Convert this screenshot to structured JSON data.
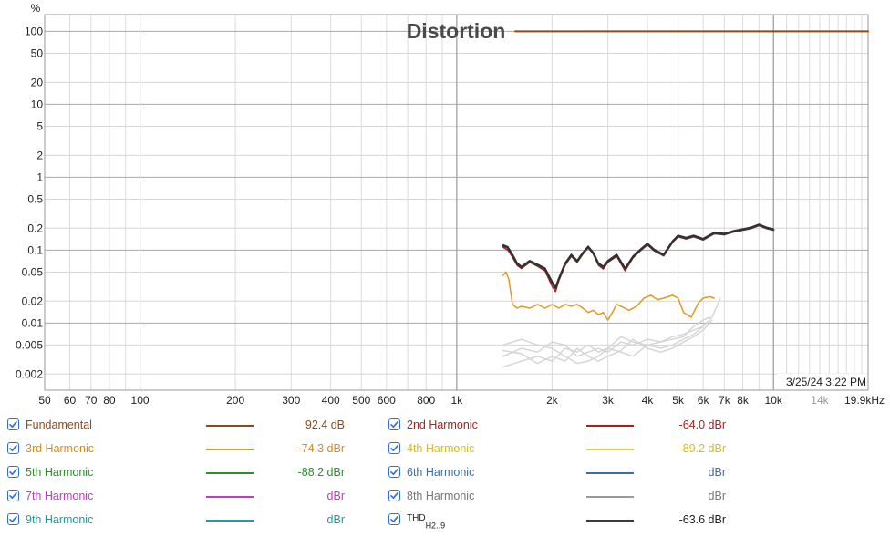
{
  "chart_data": {
    "type": "line",
    "title": "Distortion",
    "ylabel": "%",
    "xlabel": "",
    "x_scale": "log",
    "y_scale": "log",
    "xlim": [
      50,
      19900
    ],
    "ylim": [
      0.0012,
      170
    ],
    "grid": true,
    "timestamp": "3/25/24 3:22 PM",
    "x_ticks": [
      {
        "v": 50,
        "label": "50"
      },
      {
        "v": 60,
        "label": "60"
      },
      {
        "v": 70,
        "label": "70"
      },
      {
        "v": 80,
        "label": "80"
      },
      {
        "v": 100,
        "label": "100"
      },
      {
        "v": 200,
        "label": "200"
      },
      {
        "v": 300,
        "label": "300"
      },
      {
        "v": 400,
        "label": "400"
      },
      {
        "v": 500,
        "label": "500"
      },
      {
        "v": 600,
        "label": "600"
      },
      {
        "v": 800,
        "label": "800"
      },
      {
        "v": 1000,
        "label": "1k"
      },
      {
        "v": 2000,
        "label": "2k"
      },
      {
        "v": 3000,
        "label": "3k"
      },
      {
        "v": 4000,
        "label": "4k"
      },
      {
        "v": 5000,
        "label": "5k"
      },
      {
        "v": 6000,
        "label": "6k"
      },
      {
        "v": 7000,
        "label": "7k"
      },
      {
        "v": 8000,
        "label": "8k"
      },
      {
        "v": 10000,
        "label": "10k"
      },
      {
        "v": 14000,
        "label": "14k",
        "muted": true
      },
      {
        "v": 19900,
        "label": "19.9kHz"
      }
    ],
    "y_ticks": [
      {
        "v": 100,
        "label": "100"
      },
      {
        "v": 50,
        "label": "50"
      },
      {
        "v": 20,
        "label": "20"
      },
      {
        "v": 10,
        "label": "10"
      },
      {
        "v": 5,
        "label": "5"
      },
      {
        "v": 2,
        "label": "2"
      },
      {
        "v": 1,
        "label": "1"
      },
      {
        "v": 0.5,
        "label": "0.5"
      },
      {
        "v": 0.2,
        "label": "0.2"
      },
      {
        "v": 0.1,
        "label": "0.1"
      },
      {
        "v": 0.05,
        "label": "0.05"
      },
      {
        "v": 0.02,
        "label": "0.02"
      },
      {
        "v": 0.01,
        "label": "0.01"
      },
      {
        "v": 0.005,
        "label": "0.005"
      },
      {
        "v": 0.002,
        "label": "0.002"
      }
    ],
    "series": [
      {
        "key": "fundamental",
        "color": "#8b4a1c",
        "width": 2,
        "x": [
          1530,
          19900
        ],
        "y": [
          100,
          100
        ]
      },
      {
        "key": "thd",
        "color": "#3a3a3a",
        "width": 2.4,
        "x": [
          1400,
          1450,
          1500,
          1550,
          1600,
          1700,
          1800,
          1900,
          2000,
          2050,
          2100,
          2200,
          2300,
          2400,
          2500,
          2600,
          2700,
          2800,
          2900,
          3000,
          3200,
          3400,
          3600,
          3800,
          4000,
          4200,
          4500,
          4800,
          5000,
          5300,
          5600,
          6000,
          6500,
          7000,
          7500,
          8000,
          8500,
          9000,
          9500,
          10000
        ],
        "y": [
          0.115,
          0.108,
          0.085,
          0.065,
          0.058,
          0.07,
          0.062,
          0.055,
          0.036,
          0.03,
          0.04,
          0.065,
          0.085,
          0.07,
          0.09,
          0.11,
          0.09,
          0.065,
          0.058,
          0.07,
          0.085,
          0.055,
          0.08,
          0.1,
          0.12,
          0.1,
          0.085,
          0.13,
          0.155,
          0.145,
          0.155,
          0.14,
          0.17,
          0.165,
          0.18,
          0.19,
          0.2,
          0.22,
          0.2,
          0.19
        ]
      },
      {
        "key": "h2",
        "color": "#b01c1c",
        "width": 1.4,
        "x": [
          1400,
          1450,
          1500,
          1550,
          1600,
          1700,
          1800,
          1900,
          2000,
          2050,
          2100,
          2200,
          2300,
          2400,
          2500,
          2600,
          2700,
          2800,
          2900,
          3000,
          3200,
          3400,
          3600,
          3800,
          4000,
          4200,
          4500,
          4800,
          5000,
          5300,
          5600,
          6000,
          6500,
          7000,
          7500,
          8000,
          8500,
          9000,
          9500,
          10000
        ],
        "y": [
          0.11,
          0.1,
          0.08,
          0.062,
          0.056,
          0.068,
          0.06,
          0.052,
          0.032,
          0.027,
          0.038,
          0.062,
          0.082,
          0.068,
          0.088,
          0.108,
          0.088,
          0.062,
          0.055,
          0.068,
          0.082,
          0.052,
          0.078,
          0.098,
          0.118,
          0.098,
          0.083,
          0.128,
          0.152,
          0.142,
          0.152,
          0.138,
          0.168,
          0.162,
          0.178,
          0.188,
          0.198,
          0.218,
          0.198,
          0.188
        ]
      },
      {
        "key": "h3",
        "color": "#e09a1e",
        "width": 1.5,
        "x": [
          1400,
          1430,
          1460,
          1500,
          1550,
          1600,
          1700,
          1800,
          1900,
          2000,
          2100,
          2200,
          2300,
          2400,
          2500,
          2600,
          2700,
          2800,
          2900,
          3000,
          3100,
          3200,
          3300,
          3500,
          3700,
          3900,
          4100,
          4300,
          4500,
          4800,
          5000,
          5200,
          5500,
          5800,
          6000,
          6300,
          6500
        ],
        "y": [
          0.045,
          0.05,
          0.04,
          0.018,
          0.016,
          0.017,
          0.016,
          0.018,
          0.016,
          0.018,
          0.016,
          0.018,
          0.017,
          0.018,
          0.016,
          0.014,
          0.015,
          0.013,
          0.014,
          0.011,
          0.014,
          0.018,
          0.017,
          0.015,
          0.017,
          0.022,
          0.024,
          0.021,
          0.022,
          0.024,
          0.022,
          0.014,
          0.012,
          0.019,
          0.022,
          0.023,
          0.022
        ]
      },
      {
        "key": "gray1",
        "color": "#d4d4d4",
        "width": 1.4,
        "x": [
          1400,
          1600,
          1800,
          2000,
          2200,
          2400,
          2600,
          2800,
          3000,
          3300,
          3600,
          4000,
          4400,
          4800,
          5200,
          5600,
          6000
        ],
        "y": [
          0.0035,
          0.0045,
          0.004,
          0.0055,
          0.005,
          0.0035,
          0.004,
          0.0045,
          0.004,
          0.0055,
          0.005,
          0.006,
          0.0055,
          0.0065,
          0.007,
          0.008,
          0.009
        ]
      },
      {
        "key": "gray2",
        "color": "#d4d4d4",
        "width": 1.4,
        "x": [
          1400,
          1600,
          1800,
          2000,
          2200,
          2400,
          2600,
          2800,
          3000,
          3300,
          3600,
          4000,
          4400,
          4800,
          5200,
          5600,
          6000,
          6300
        ],
        "y": [
          0.0025,
          0.003,
          0.0035,
          0.003,
          0.0045,
          0.004,
          0.005,
          0.004,
          0.0045,
          0.0065,
          0.0055,
          0.005,
          0.0055,
          0.006,
          0.0065,
          0.009,
          0.011,
          0.012
        ]
      },
      {
        "key": "gray3",
        "color": "#d4d4d4",
        "width": 1.4,
        "x": [
          1400,
          1600,
          1800,
          2000,
          2200,
          2400,
          2600,
          2800,
          3000,
          3300,
          3600,
          4000,
          4400,
          4800,
          5200,
          5600,
          6000,
          6400,
          6800
        ],
        "y": [
          0.005,
          0.006,
          0.005,
          0.0045,
          0.0035,
          0.0028,
          0.003,
          0.0035,
          0.0045,
          0.004,
          0.0035,
          0.005,
          0.0045,
          0.005,
          0.006,
          0.007,
          0.009,
          0.012,
          0.022
        ]
      },
      {
        "key": "gray4",
        "color": "#d4d4d4",
        "width": 1.4,
        "x": [
          1400,
          1600,
          1800,
          2000,
          2200,
          2400,
          2600,
          2800,
          3000,
          3300,
          3600,
          4000,
          4400,
          4800,
          5200,
          5600,
          6000,
          6400
        ],
        "y": [
          0.0042,
          0.0038,
          0.0028,
          0.0035,
          0.003,
          0.0045,
          0.0035,
          0.003,
          0.0035,
          0.0042,
          0.006,
          0.0045,
          0.004,
          0.0045,
          0.0055,
          0.0065,
          0.008,
          0.011
        ]
      }
    ]
  },
  "legend": [
    {
      "label": "Fundamental",
      "value": "92.4 dB",
      "color": "#8b4a1c",
      "label_color": "#8b4a1c",
      "value_color": "#8b4a1c",
      "checked": true
    },
    {
      "label": "2nd Harmonic",
      "value": "-64.0 dBr",
      "color": "#b01c1c",
      "label_color": "#b01c1c",
      "value_color": "#b01c1c",
      "checked": true
    },
    {
      "label": "3rd Harmonic",
      "value": "-74.3 dBr",
      "color": "#e09a1e",
      "label_color": "#d78a16",
      "value_color": "#d78a16",
      "checked": true
    },
    {
      "label": "4th Harmonic",
      "value": "-89.2 dBr",
      "color": "#e6d22a",
      "label_color": "#d6bf10",
      "value_color": "#d6bf10",
      "checked": true
    },
    {
      "label": "5th Harmonic",
      "value": "-88.2 dBr",
      "color": "#2a8e2a",
      "label_color": "#2a8e2a",
      "value_color": "#2a8e2a",
      "checked": true
    },
    {
      "label": "6th Harmonic",
      "value": "dBr",
      "color": "#3d6ea8",
      "label_color": "#3d6ea8",
      "value_color": "#3d6ea8",
      "checked": true
    },
    {
      "label": "7th Harmonic",
      "value": "dBr",
      "color": "#c03cc0",
      "label_color": "#c03cc0",
      "value_color": "#c03cc0",
      "checked": true
    },
    {
      "label": "8th Harmonic",
      "value": "dBr",
      "color": "#9a9a9a",
      "label_color": "#777777",
      "value_color": "#777777",
      "checked": true
    },
    {
      "label": "9th Harmonic",
      "value": "dBr",
      "color": "#1aa0a0",
      "label_color": "#1a9a9a",
      "value_color": "#1a9a9a",
      "checked": true
    },
    {
      "label": "THD",
      "label_sub": "H2..9",
      "value": "-63.6 dBr",
      "color": "#3a3a3a",
      "label_color": "#222222",
      "value_color": "#222222",
      "checked": true
    }
  ]
}
